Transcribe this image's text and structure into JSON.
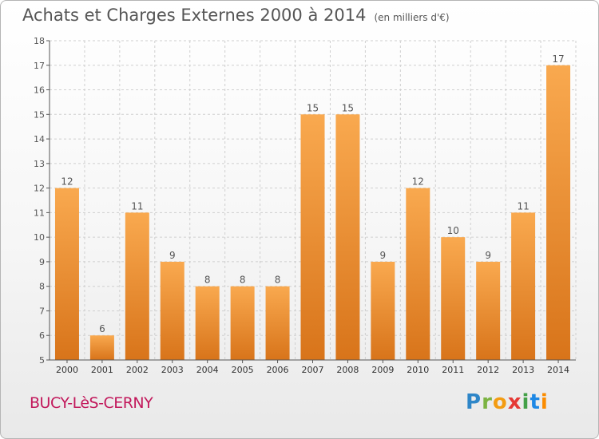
{
  "header": {
    "title": "Achats et Charges Externes 2000 à 2014",
    "unit": "(en milliers d'€)"
  },
  "footer": {
    "place": "BUCY-LèS-CERNY",
    "brand": "Proxiti"
  },
  "colors": {
    "bar_light": "#f9a94f",
    "bar_dark": "#d8741a",
    "axis": "#555555",
    "grid": "#cfcfcf",
    "place": "#c2185b"
  },
  "chart_data": {
    "type": "bar",
    "title": "Achats et Charges Externes 2000 à 2014",
    "subtitle": "(en milliers d'€)",
    "xlabel": "",
    "ylabel": "",
    "categories": [
      "2000",
      "2001",
      "2002",
      "2003",
      "2004",
      "2005",
      "2006",
      "2007",
      "2008",
      "2009",
      "2010",
      "2011",
      "2012",
      "2013",
      "2014"
    ],
    "values": [
      12,
      6,
      11,
      9,
      8,
      8,
      8,
      15,
      15,
      9,
      12,
      10,
      9,
      11,
      17
    ],
    "ylim": [
      5,
      18
    ],
    "yticks": [
      5,
      6,
      7,
      8,
      9,
      10,
      11,
      12,
      13,
      14,
      15,
      16,
      17,
      18
    ],
    "grid": true,
    "data_labels": true,
    "legend": "none"
  }
}
